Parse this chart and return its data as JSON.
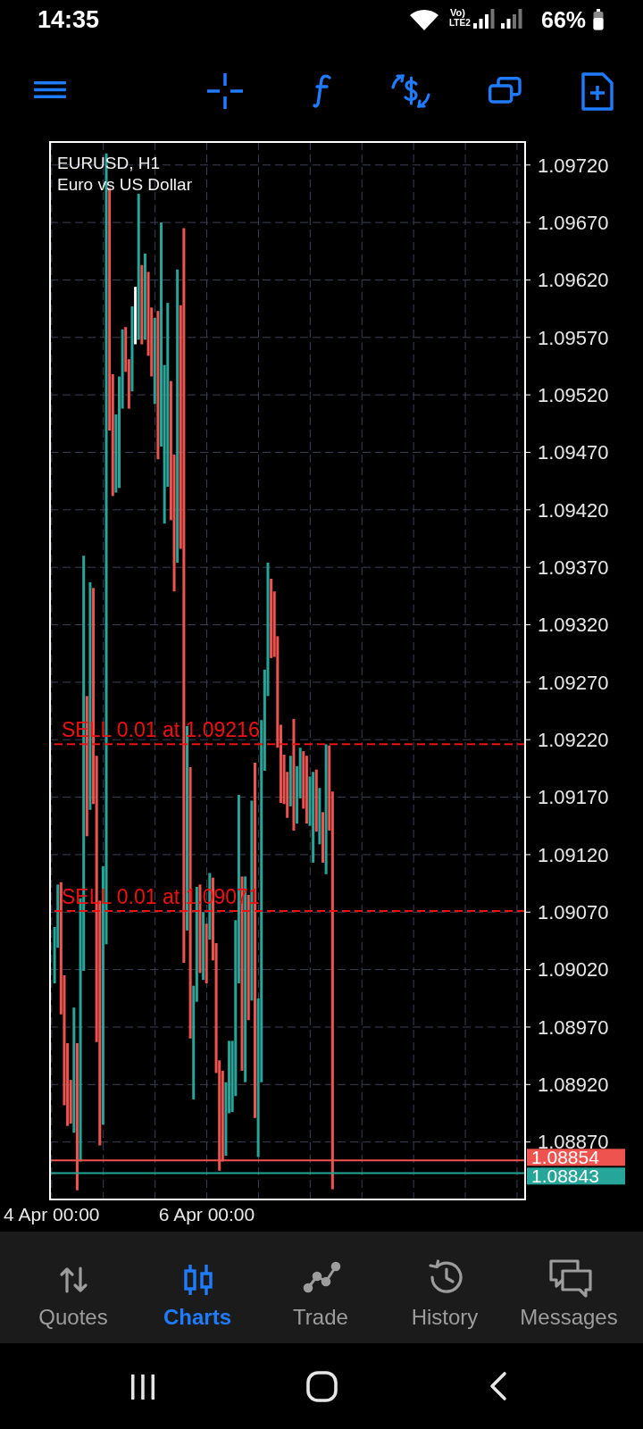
{
  "chart_data": {
    "type": "bar",
    "title": "EURUSD, H1",
    "subtitle": "Euro vs US Dollar",
    "categories": [
      "4 Apr 00:00",
      null,
      null,
      null,
      null,
      null,
      null,
      null,
      null,
      null,
      null,
      null,
      null,
      null,
      null,
      null,
      null,
      null,
      null,
      null,
      null,
      null,
      null,
      null,
      null,
      null,
      null,
      null,
      null,
      null,
      null,
      null,
      null,
      null,
      null,
      null,
      null,
      null,
      null,
      null,
      null,
      null,
      null,
      null,
      null,
      null,
      null,
      null,
      "6 Apr 00:00",
      null,
      null,
      null,
      null,
      null,
      null,
      null,
      null,
      null,
      null,
      null,
      null,
      null,
      null,
      null,
      null,
      null,
      null,
      null,
      null,
      null,
      null,
      null,
      null,
      null,
      null,
      null,
      null,
      null,
      null,
      null,
      null,
      null,
      null,
      null,
      null,
      null,
      null,
      null,
      null,
      null,
      null,
      null,
      null,
      null,
      null,
      null,
      null,
      null,
      null,
      null,
      null,
      null,
      null,
      null,
      null,
      null,
      null,
      null,
      null,
      null,
      null,
      null,
      null,
      null,
      null,
      null,
      null,
      null,
      null,
      null,
      null,
      null,
      null,
      null,
      null,
      null,
      null,
      null,
      null,
      null,
      null,
      null,
      null,
      null,
      null,
      null,
      null,
      null,
      null,
      null,
      null,
      null,
      null,
      null,
      null,
      null,
      null
    ],
    "values": [
      null,
      0.00049,
      0.00055,
      0.00115,
      0.00113,
      0.00072,
      0.00038,
      0.00109,
      0.00128,
      0.00229,
      0.00361,
      0.00122,
      0.00198,
      0.00188,
      0.00249,
      0.00213,
      0.00225,
      0.00688,
      0.00211,
      0.00106,
      0.00068,
      0.00097,
      0.00069,
      0.00039,
      0.00043,
      0.00074,
      0.0005,
      0.00127,
      0.00069,
      0.00075,
      0.00073,
      0.0006,
      0.00075,
      0.00129,
      0.00195,
      0.00138,
      0.0016,
      0.00121,
      0.00119,
      0.00255,
      0.00212,
      0.00639,
      0.00178,
      0.00236,
      0.00099,
      0.001,
      0.00077,
      0.00059,
      0.00052,
      0.00058,
      0.00072,
      0.00113,
      0.00096,
      0.00079,
      0.00064,
      0.00063,
      0.00062,
      0.00153,
      0.00164,
      0.00169,
      0.00179,
      0.00109,
      0.00174,
      0.00309,
      0.00138,
      0.00315,
      0.00088,
      0.00116,
      0.00069,
      0.00057,
      0.00097,
      0.00068,
      0.00043,
      0.0004,
      0.00044,
      0.00097,
      0.0005,
      0.00044,
      0.0005,
      0.00059,
      0.00043,
      0.00079,
      0.00054,
      0.00049,
      0.00044,
      0.00113,
      0.00074,
      0.00346,
      null,
      null,
      null,
      null,
      null,
      null,
      null,
      null,
      null,
      null,
      null,
      null,
      null,
      null,
      null,
      null,
      null,
      null,
      null,
      null,
      null,
      null,
      null,
      null,
      null,
      null,
      null,
      null,
      null,
      null,
      null,
      null,
      null,
      null,
      null,
      null,
      null,
      null,
      null,
      null,
      null,
      null,
      null,
      null,
      null,
      null,
      null,
      null,
      null,
      null,
      null,
      null,
      null,
      null,
      null,
      null,
      null,
      null,
      null
    ],
    "base": [
      null,
      1.09008,
      1.09039,
      1.08981,
      1.08902,
      1.08884,
      1.08886,
      1.08878,
      1.08828,
      1.08853,
      1.09019,
      1.09136,
      1.09159,
      1.09164,
      1.08957,
      1.08867,
      1.08885,
      1.09042,
      1.09489,
      1.09432,
      1.09435,
      1.09439,
      1.09508,
      1.0954,
      1.09508,
      1.09523,
      1.09564,
      1.09568,
      1.09564,
      1.09568,
      1.09554,
      1.09536,
      1.09512,
      1.09464,
      1.09475,
      1.09408,
      1.0944,
      1.09411,
      1.09349,
      1.09374,
      1.09386,
      1.09026,
      1.09054,
      1.0896,
      1.08907,
      1.08992,
      1.09017,
      1.09011,
      1.09008,
      1.09046,
      1.09028,
      1.0893,
      1.08845,
      1.08853,
      1.08858,
      1.08895,
      1.08896,
      1.0891,
      1.09008,
      1.08932,
      1.08922,
      1.08976,
      1.08993,
      1.08891,
      1.08857,
      1.08922,
      1.09193,
      1.09258,
      1.09291,
      1.09292,
      1.09213,
      1.09165,
      1.09164,
      1.09152,
      1.09162,
      1.09141,
      1.09147,
      1.09169,
      1.0916,
      1.09147,
      1.09145,
      1.09113,
      1.0914,
      1.09129,
      1.09113,
      1.09103,
      1.09141,
      1.08829,
      null,
      null,
      null,
      null,
      null,
      null,
      null,
      null,
      null,
      null,
      null,
      null,
      null,
      null,
      null,
      null,
      null,
      null,
      null,
      null,
      null,
      null,
      null,
      null,
      null,
      null,
      null,
      null,
      null,
      null,
      null,
      null,
      null,
      null,
      null,
      null,
      null,
      null,
      null,
      null,
      null,
      null,
      null,
      null,
      null,
      null,
      null,
      null,
      null,
      null,
      null,
      null,
      null,
      null,
      null,
      null,
      null,
      null,
      null
    ],
    "colors": [
      null,
      "#26a69a",
      "#26a69a",
      "#ef5350",
      "#ef5350",
      "#ef5350",
      "#ef5350",
      "#26a69a",
      "#ef5350",
      "#26a69a",
      "#26a69a",
      "#ef5350",
      "#26a69a",
      "#ef5350",
      "#ef5350",
      "#ef5350",
      "#26a69a",
      "#26a69a",
      "#ef5350",
      "#ef5350",
      "#26a69a",
      "#26a69a",
      "#26a69a",
      "#ef5350",
      "#ef5350",
      "#26a69a",
      "#ffffff",
      "#26a69a",
      "#ef5350",
      "#26a69a",
      "#ef5350",
      "#ef5350",
      "#26a69a",
      "#ef5350",
      "#26a69a",
      "#26a69a",
      "#26a69a",
      "#ef5350",
      "#ef5350",
      "#26a69a",
      "#ef5350",
      "#ef5350",
      "#26a69a",
      "#ef5350",
      "#26a69a",
      "#26a69a",
      "#ef5350",
      "#26a69a",
      "#ef5350",
      "#26a69a",
      "#ef5350",
      "#ef5350",
      "#ef5350",
      "#ef5350",
      "#26a69a",
      "#26a69a",
      "#26a69a",
      "#26a69a",
      "#26a69a",
      "#ef5350",
      "#26a69a",
      "#ef5350",
      "#26a69a",
      "#ef5350",
      "#26a69a",
      "#26a69a",
      "#26a69a",
      "#26a69a",
      "#ef5350",
      "#ef5350",
      "#ef5350",
      "#ef5350",
      "#ef5350",
      "#ef5350",
      "#26a69a",
      "#ef5350",
      "#26a69a",
      "#26a69a",
      "#ef5350",
      "#ef5350",
      "#26a69a",
      "#26a69a",
      "#ef5350",
      "#26a69a",
      "#ef5350",
      "#26a69a",
      "#ef5350",
      "#ef5350",
      null,
      null,
      null,
      null,
      null,
      null,
      null,
      null,
      null,
      null,
      null,
      null,
      null,
      null,
      null,
      null,
      null,
      null,
      null,
      null,
      null,
      null,
      null,
      null,
      null,
      null,
      null,
      null,
      null,
      null,
      null,
      null,
      null,
      null,
      null,
      null,
      null,
      null,
      null,
      null,
      null,
      null,
      null,
      null,
      null,
      null,
      null,
      null,
      null,
      null,
      null,
      null,
      null,
      null,
      null,
      null,
      null,
      null,
      null
    ],
    "ylim": [
      1.0882,
      1.0974
    ],
    "yticks": [
      {
        "value": 1.0887,
        "label": "1.08870"
      },
      {
        "value": 1.0892,
        "label": "1.08920"
      },
      {
        "value": 1.0897,
        "label": "1.08970"
      },
      {
        "value": 1.0902,
        "label": "1.09020"
      },
      {
        "value": 1.0907,
        "label": "1.09070"
      },
      {
        "value": 1.0912,
        "label": "1.09120"
      },
      {
        "value": 1.0917,
        "label": "1.09170"
      },
      {
        "value": 1.0922,
        "label": "1.09220"
      },
      {
        "value": 1.0927,
        "label": "1.09270"
      },
      {
        "value": 1.0932,
        "label": "1.09320"
      },
      {
        "value": 1.0937,
        "label": "1.09370"
      },
      {
        "value": 1.0942,
        "label": "1.09420"
      },
      {
        "value": 1.0947,
        "label": "1.09470"
      },
      {
        "value": 1.0952,
        "label": "1.09520"
      },
      {
        "value": 1.0957,
        "label": "1.09570"
      },
      {
        "value": 1.0962,
        "label": "1.09620"
      },
      {
        "value": 1.0967,
        "label": "1.09670"
      },
      {
        "value": 1.0972,
        "label": "1.09720"
      }
    ],
    "grid": true,
    "ref_lines": [
      {
        "axis": "y",
        "value": 1.09216,
        "label": "SELL 0.01 at 1.09216",
        "color": "#f01010",
        "line_style": "dashed"
      },
      {
        "axis": "y",
        "value": 1.09071,
        "label": "SELL 0.01 at 1.09071",
        "color": "#f01010",
        "line_style": "dashed"
      },
      {
        "axis": "y",
        "value": 1.08854,
        "label": "1.08854",
        "color": "#ef5350",
        "line_style": "solid"
      },
      {
        "axis": "y",
        "value": 1.08843,
        "label": "1.08843",
        "color": "#26a69a",
        "line_style": "solid"
      }
    ],
    "annotations": [
      "14:35",
      "Vo)",
      "LTE2",
      "66%",
      "Quotes",
      "Charts",
      "Trade",
      "History",
      "Messages"
    ]
  }
}
